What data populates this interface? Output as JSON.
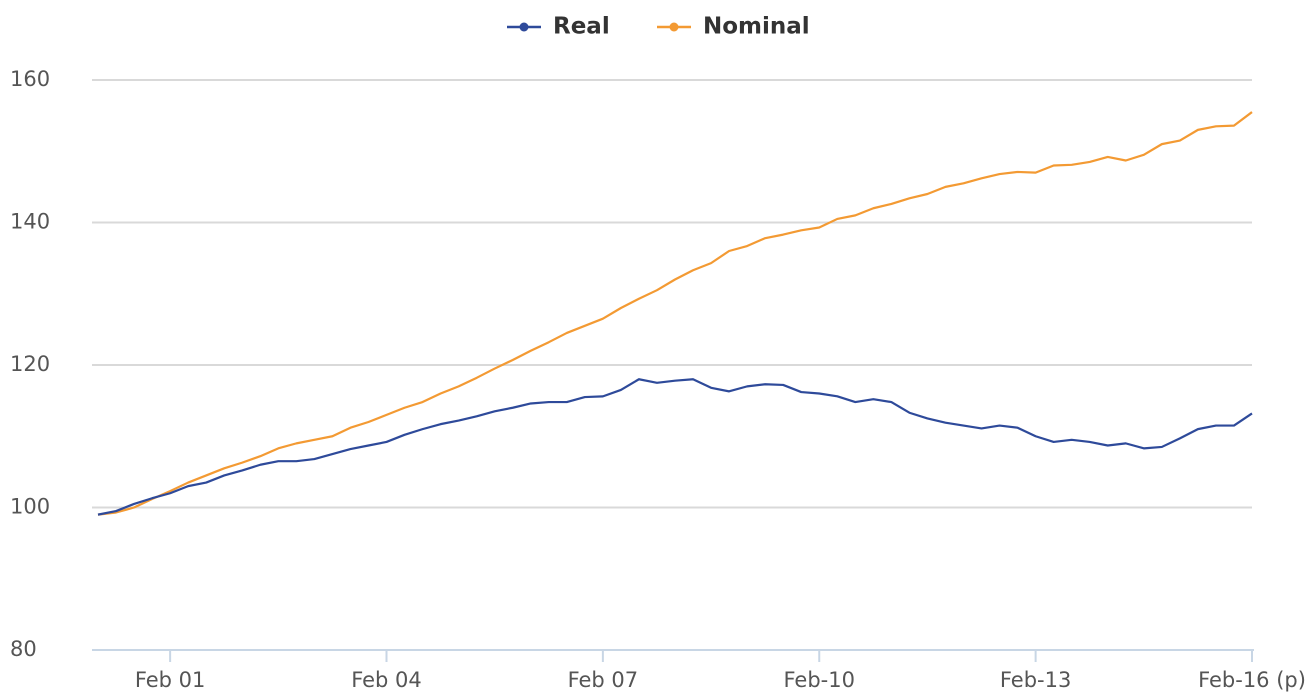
{
  "chart_data": {
    "type": "line",
    "categories": [
      null,
      null,
      null,
      null,
      "Feb 01",
      null,
      null,
      null,
      null,
      null,
      null,
      null,
      null,
      null,
      null,
      null,
      "Feb 04",
      null,
      null,
      null,
      null,
      null,
      null,
      null,
      null,
      null,
      null,
      null,
      "Feb 07",
      null,
      null,
      null,
      null,
      null,
      null,
      null,
      null,
      null,
      null,
      null,
      "Feb-10",
      null,
      null,
      null,
      null,
      null,
      null,
      null,
      null,
      null,
      null,
      null,
      "Feb-13",
      null,
      null,
      null,
      null,
      null,
      null,
      null,
      null,
      null,
      null,
      null,
      "Feb-16 (p)"
    ],
    "series": [
      {
        "name": "Real",
        "color": "#2e4a9a",
        "values": [
          99,
          99.5,
          100.5,
          101.3,
          102,
          103,
          103.5,
          104.5,
          105.2,
          106,
          106.5,
          106.5,
          106.8,
          107.5,
          108.2,
          108.7,
          109.2,
          110.2,
          111,
          111.7,
          112.2,
          112.8,
          113.5,
          114,
          114.6,
          114.8,
          114.8,
          115.5,
          115.6,
          116.5,
          118,
          117.5,
          117.8,
          118,
          116.8,
          116.3,
          117,
          117.3,
          117.2,
          116.2,
          116,
          115.6,
          114.8,
          115.2,
          114.8,
          113.3,
          112.5,
          111.9,
          111.5,
          111.1,
          111.5,
          111.2,
          110,
          109.2,
          109.5,
          109.2,
          108.7,
          109,
          108.3,
          108.5,
          109.7,
          111,
          111.5,
          111.5,
          113.2
        ]
      },
      {
        "name": "Nominal",
        "color": "#f39a33",
        "values": [
          99,
          99.3,
          100,
          101.2,
          102.3,
          103.5,
          104.5,
          105.5,
          106.3,
          107.2,
          108.3,
          109,
          109.5,
          110,
          111.2,
          112,
          113,
          114,
          114.8,
          116,
          117,
          118.2,
          119.5,
          120.7,
          122,
          123.2,
          124.5,
          125.5,
          126.5,
          128,
          129.3,
          130.5,
          132,
          133.3,
          134.3,
          136,
          136.7,
          137.8,
          138.3,
          138.9,
          139.3,
          140.5,
          141,
          142,
          142.6,
          143.4,
          144,
          145,
          145.5,
          146.2,
          146.8,
          147.1,
          147,
          148,
          148.1,
          148.5,
          149.2,
          148.7,
          149.5,
          151,
          151.5,
          153,
          153.5,
          153.6,
          155.5
        ]
      }
    ],
    "ylim": [
      80,
      160
    ],
    "yticks": [
      80,
      100,
      120,
      140,
      160
    ],
    "grid": true,
    "legend": "top"
  }
}
